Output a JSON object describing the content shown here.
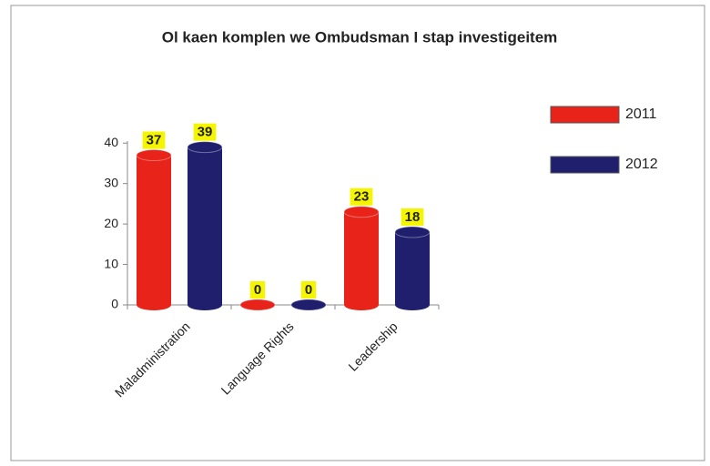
{
  "chart_data": {
    "type": "bar",
    "title": "Ol kaen komplen we Ombudsman I stap investigeitem",
    "categories": [
      "Maladministration",
      "Language Rights",
      "Leadership"
    ],
    "series": [
      {
        "name": "2011",
        "color": "#e8241a",
        "values": [
          37,
          0,
          23
        ]
      },
      {
        "name": "2012",
        "color": "#1f1f6e",
        "values": [
          39,
          0,
          18
        ]
      }
    ],
    "ylim": [
      0,
      45
    ],
    "yticks": [
      0,
      10,
      20,
      30,
      40
    ],
    "legend": "right"
  }
}
